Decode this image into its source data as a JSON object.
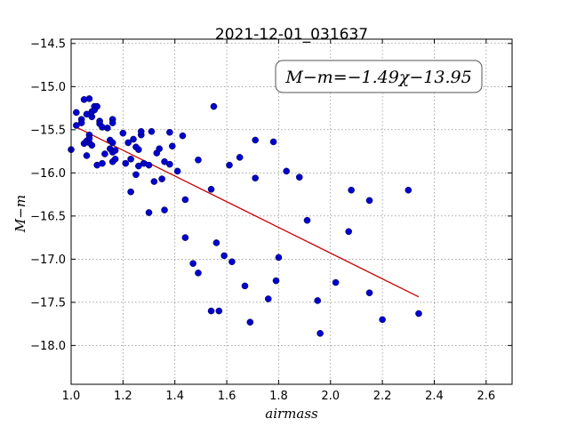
{
  "chart_data": {
    "type": "scatter",
    "title": "2021-12-01_031637",
    "xlabel": "airmass",
    "ylabel": "M−m",
    "xlim": [
      1.0,
      2.7
    ],
    "ylim": [
      -18.45,
      -14.45
    ],
    "xticks": [
      1.0,
      1.2,
      1.4,
      1.6,
      1.8,
      2.0,
      2.2,
      2.4,
      2.6
    ],
    "xtick_labels": [
      "1.0",
      "1.2",
      "1.4",
      "1.6",
      "1.8",
      "2.0",
      "2.2",
      "2.4",
      "2.6"
    ],
    "yticks": [
      -14.5,
      -15.0,
      -15.5,
      -16.0,
      -16.5,
      -17.0,
      -17.5,
      -18.0
    ],
    "ytick_labels": [
      "−14.5",
      "−15.0",
      "−15.5",
      "−16.0",
      "−16.5",
      "−17.0",
      "−17.5",
      "−18.0"
    ],
    "grid": true,
    "annotation": "M−m=−1.49χ−13.95",
    "fit": {
      "slope": -1.49,
      "intercept": -13.95,
      "x_range": [
        1.02,
        2.34
      ],
      "color": "#cc0000"
    },
    "point_color": "#0000cc",
    "points": [
      [
        1.0,
        -15.73
      ],
      [
        1.02,
        -15.3
      ],
      [
        1.02,
        -15.45
      ],
      [
        1.04,
        -15.38
      ],
      [
        1.04,
        -15.42
      ],
      [
        1.05,
        -15.15
      ],
      [
        1.05,
        -15.66
      ],
      [
        1.06,
        -15.32
      ],
      [
        1.06,
        -15.63
      ],
      [
        1.06,
        -15.8
      ],
      [
        1.07,
        -15.14
      ],
      [
        1.07,
        -15.56
      ],
      [
        1.07,
        -15.65
      ],
      [
        1.07,
        -15.6
      ],
      [
        1.08,
        -15.35
      ],
      [
        1.08,
        -15.29
      ],
      [
        1.08,
        -15.68
      ],
      [
        1.09,
        -15.23
      ],
      [
        1.09,
        -15.27
      ],
      [
        1.1,
        -15.23
      ],
      [
        1.1,
        -15.91
      ],
      [
        1.11,
        -15.4
      ],
      [
        1.11,
        -15.43
      ],
      [
        1.12,
        -15.89
      ],
      [
        1.12,
        -15.47
      ],
      [
        1.13,
        -15.78
      ],
      [
        1.14,
        -15.48
      ],
      [
        1.15,
        -15.72
      ],
      [
        1.15,
        -15.62
      ],
      [
        1.16,
        -15.38
      ],
      [
        1.16,
        -15.42
      ],
      [
        1.16,
        -15.65
      ],
      [
        1.16,
        -15.76
      ],
      [
        1.16,
        -15.87
      ],
      [
        1.17,
        -15.74
      ],
      [
        1.17,
        -15.84
      ],
      [
        1.2,
        -15.54
      ],
      [
        1.21,
        -15.89
      ],
      [
        1.22,
        -15.65
      ],
      [
        1.23,
        -15.84
      ],
      [
        1.23,
        -16.22
      ],
      [
        1.24,
        -15.61
      ],
      [
        1.25,
        -15.7
      ],
      [
        1.25,
        -16.02
      ],
      [
        1.26,
        -15.73
      ],
      [
        1.26,
        -15.92
      ],
      [
        1.27,
        -15.56
      ],
      [
        1.27,
        -15.52
      ],
      [
        1.28,
        -15.89
      ],
      [
        1.3,
        -15.91
      ],
      [
        1.3,
        -16.46
      ],
      [
        1.31,
        -15.52
      ],
      [
        1.32,
        -16.1
      ],
      [
        1.33,
        -15.77
      ],
      [
        1.34,
        -15.72
      ],
      [
        1.35,
        -16.07
      ],
      [
        1.36,
        -16.43
      ],
      [
        1.36,
        -15.87
      ],
      [
        1.38,
        -15.9
      ],
      [
        1.38,
        -15.53
      ],
      [
        1.39,
        -15.69
      ],
      [
        1.41,
        -15.98
      ],
      [
        1.43,
        -15.57
      ],
      [
        1.44,
        -16.31
      ],
      [
        1.44,
        -16.75
      ],
      [
        1.47,
        -17.05
      ],
      [
        1.49,
        -15.85
      ],
      [
        1.49,
        -17.16
      ],
      [
        1.54,
        -16.19
      ],
      [
        1.54,
        -17.6
      ],
      [
        1.55,
        -15.23
      ],
      [
        1.56,
        -16.81
      ],
      [
        1.57,
        -17.6
      ],
      [
        1.59,
        -16.96
      ],
      [
        1.61,
        -15.91
      ],
      [
        1.62,
        -17.03
      ],
      [
        1.65,
        -15.82
      ],
      [
        1.67,
        -17.31
      ],
      [
        1.69,
        -17.73
      ],
      [
        1.71,
        -16.06
      ],
      [
        1.71,
        -15.62
      ],
      [
        1.76,
        -17.46
      ],
      [
        1.78,
        -15.64
      ],
      [
        1.79,
        -17.25
      ],
      [
        1.8,
        -16.98
      ],
      [
        1.83,
        -15.98
      ],
      [
        1.88,
        -16.05
      ],
      [
        1.91,
        -16.55
      ],
      [
        1.95,
        -17.48
      ],
      [
        1.96,
        -17.86
      ],
      [
        2.02,
        -17.27
      ],
      [
        2.07,
        -16.68
      ],
      [
        2.08,
        -16.2
      ],
      [
        2.15,
        -16.32
      ],
      [
        2.15,
        -17.39
      ],
      [
        2.2,
        -17.7
      ],
      [
        2.3,
        -16.2
      ],
      [
        2.34,
        -17.63
      ]
    ]
  }
}
